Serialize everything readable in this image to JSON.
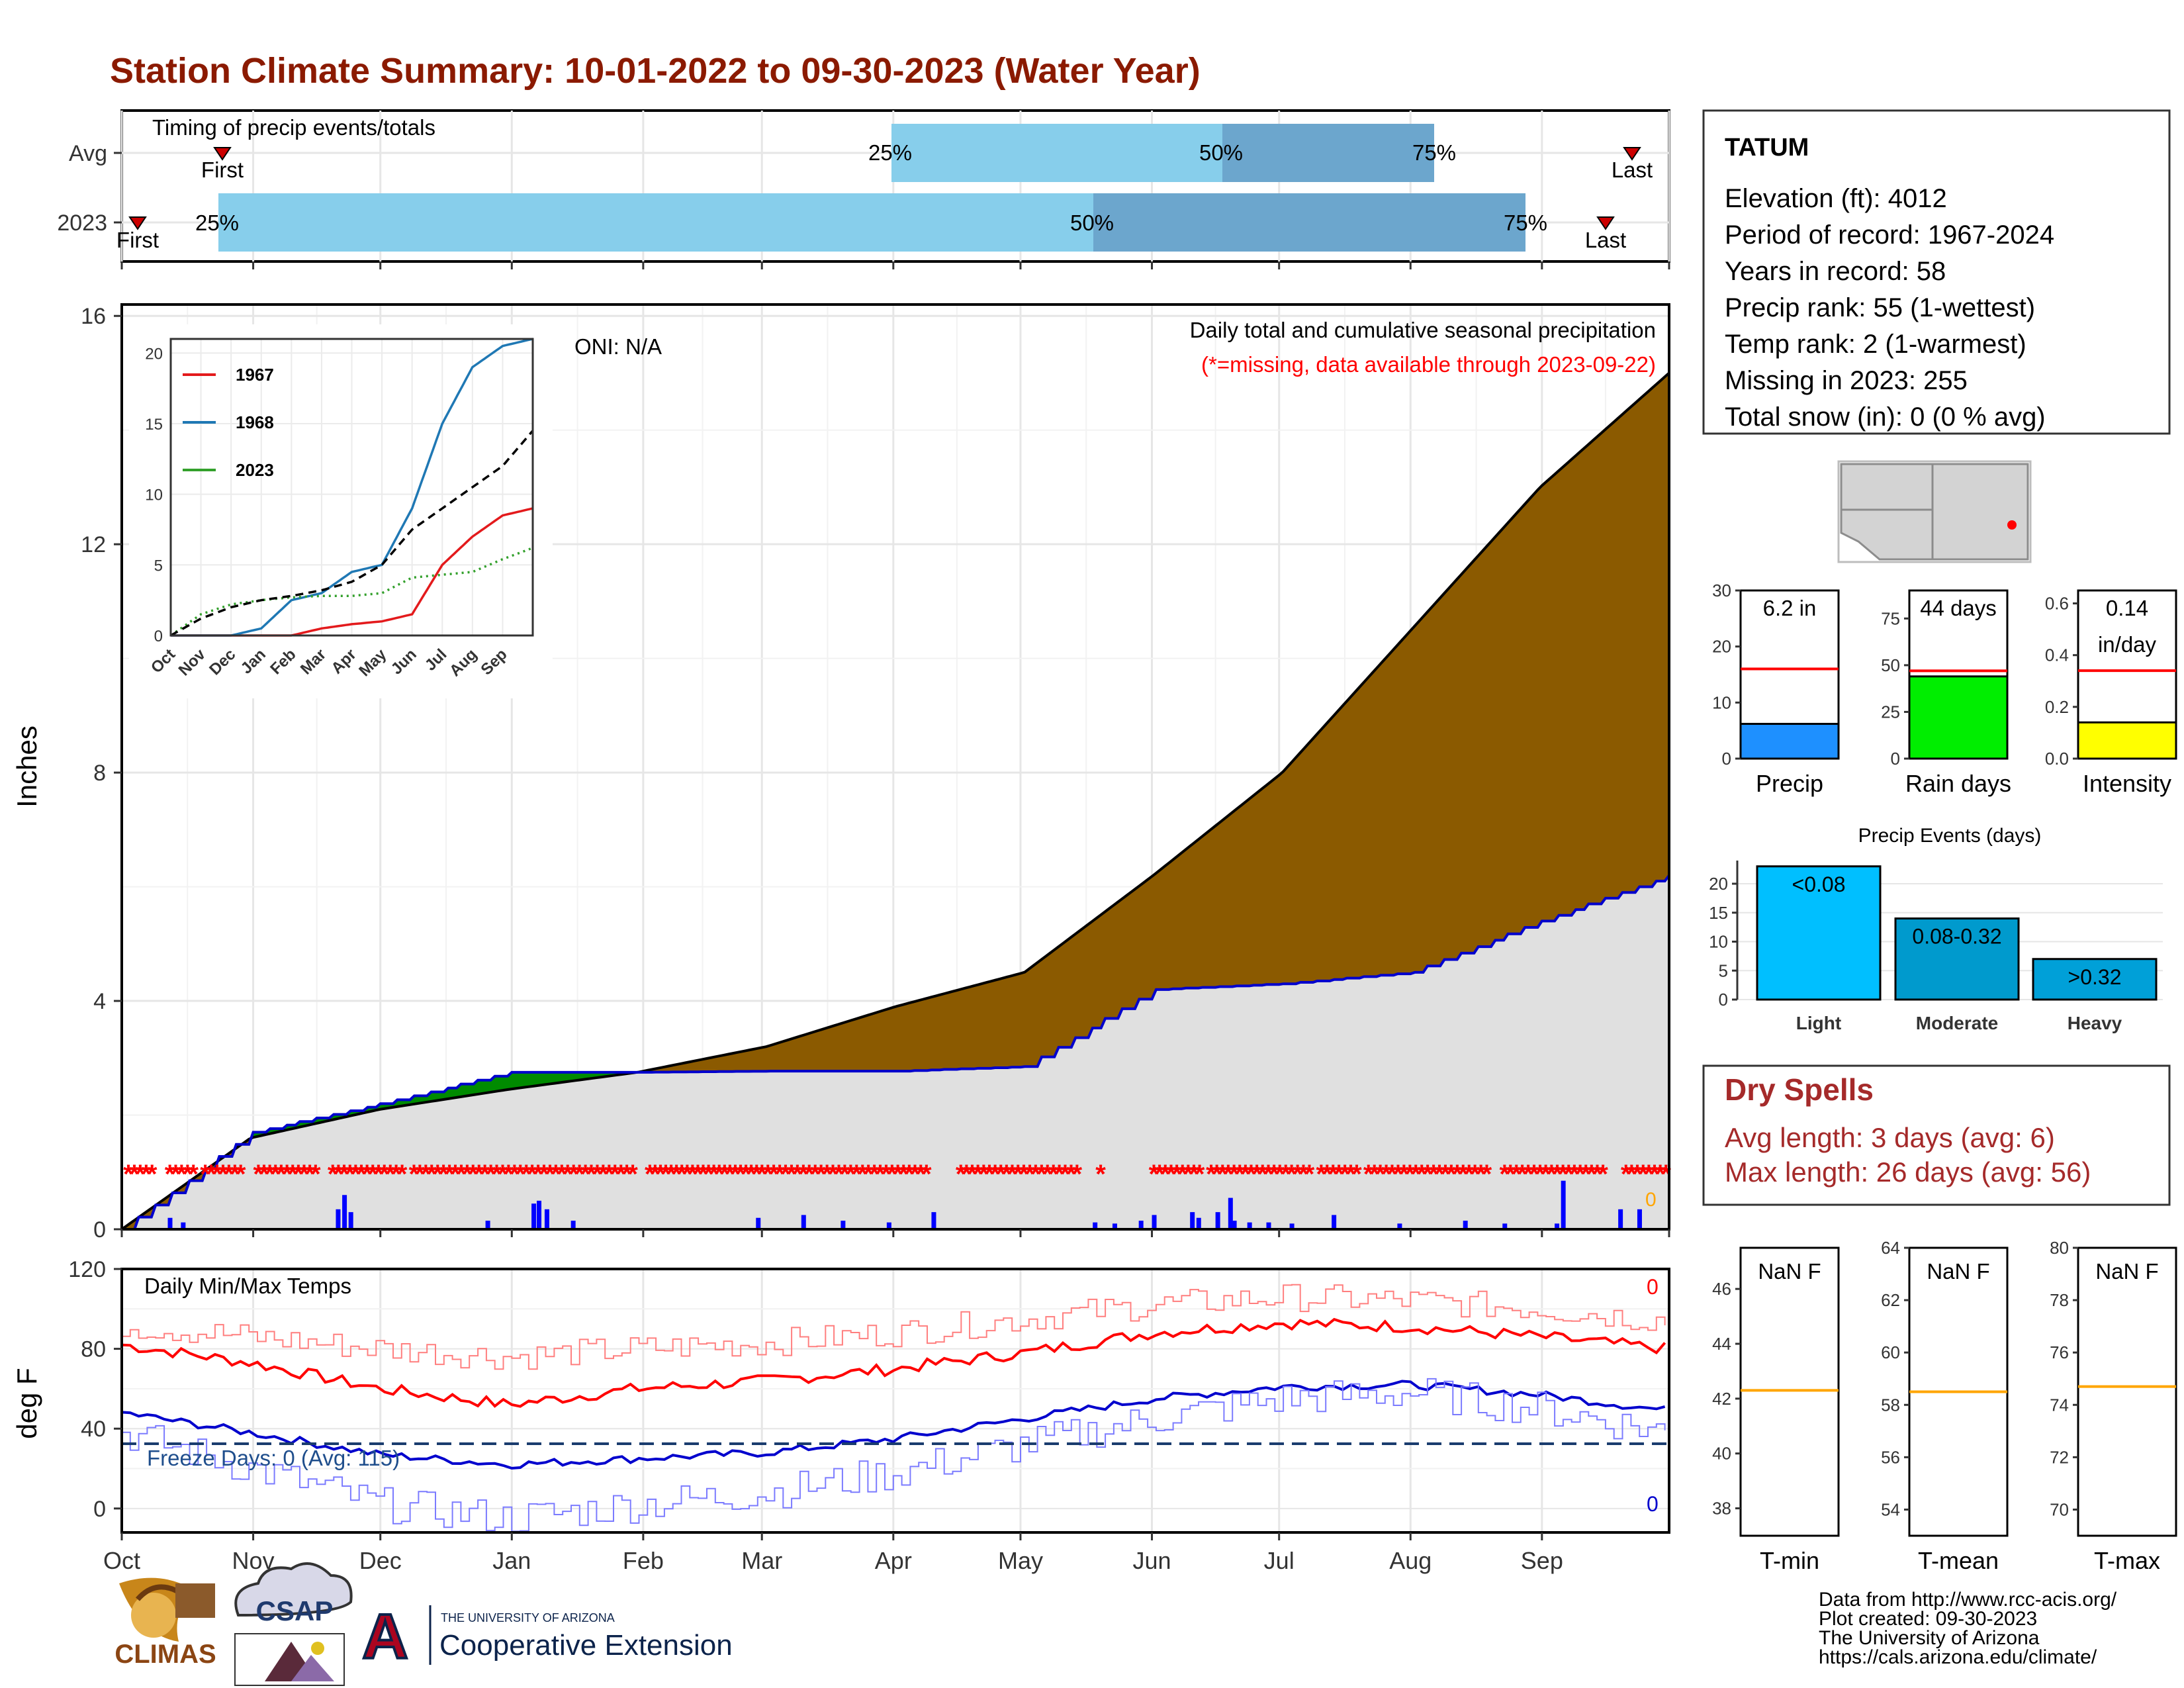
{
  "title": "Station Climate Summary: 10-01-2022 to 09-30-2023 (Water Year)",
  "timing": {
    "label": "Timing of precip events/totals",
    "rows": [
      {
        "name": "Avg",
        "first_marker": "First",
        "last_marker": "Last",
        "q25": "25%",
        "q50": "50%",
        "q75": "75%"
      },
      {
        "name": "2023",
        "first_marker": "First",
        "last_marker": "Last",
        "q25": "25%",
        "q50": "50%",
        "q75": "75%"
      }
    ]
  },
  "main": {
    "ylabel": "Inches",
    "oni": "ONI: N/A",
    "caption": "Daily total and cumulative seasonal precipitation",
    "missing_note": "(*=missing, data available through 2023-09-22)",
    "zero_label": "0",
    "y_ticks": [
      "0",
      "4",
      "8",
      "12",
      "16"
    ]
  },
  "inset": {
    "legend": [
      "1967",
      "1968",
      "2023"
    ],
    "y_ticks": [
      "0",
      "5",
      "10",
      "15",
      "20"
    ],
    "months": [
      "Oct",
      "Nov",
      "Dec",
      "Jan",
      "Feb",
      "Mar",
      "Apr",
      "May",
      "Jun",
      "Jul",
      "Aug",
      "Sep"
    ]
  },
  "temps": {
    "label": "Daily Min/Max Temps",
    "ylabel": "deg F",
    "freeze": "Freeze Days: 0 (Avg: 115)",
    "max_count": "0",
    "min_count": "0",
    "y_ticks": [
      "0",
      "40",
      "80",
      "120"
    ]
  },
  "months": [
    "Oct",
    "Nov",
    "Dec",
    "Jan",
    "Feb",
    "Mar",
    "Apr",
    "May",
    "Jun",
    "Jul",
    "Aug",
    "Sep"
  ],
  "station": {
    "name": "TATUM",
    "lines": [
      "Elevation (ft): 4012",
      "Period of record: 1967-2024",
      "Years in record: 58",
      "Precip rank: 55 (1-wettest)",
      "Temp rank: 2 (1-warmest)",
      "Missing in 2023: 255",
      "Total snow (in): 0 (0 % avg)"
    ]
  },
  "mini_bars": [
    {
      "label": "Precip",
      "value_text": "6.2 in",
      "value": 6.2,
      "avg": 16,
      "ymax": 30,
      "ticks": [
        "0",
        "10",
        "20",
        "30"
      ],
      "color": "#1e90ff"
    },
    {
      "label": "Rain days",
      "value_text": "44 days",
      "value": 44,
      "avg": 47,
      "ymax": 90,
      "ticks": [
        "0",
        "25",
        "50",
        "75"
      ],
      "color": "#00ee00"
    },
    {
      "label": "Intensity",
      "value_text": "0.14",
      "value_text2": "in/day",
      "value": 0.14,
      "avg": 0.34,
      "ymax": 0.65,
      "ticks": [
        "0.0",
        "0.2",
        "0.4",
        "0.6"
      ],
      "color": "#ffff00"
    }
  ],
  "events": {
    "title": "Precip Events (days)",
    "y_ticks": [
      "0",
      "5",
      "10",
      "15",
      "20"
    ],
    "bars": [
      {
        "label": "Light",
        "value_text": "<0.08",
        "value": 23,
        "color": "#00bfff"
      },
      {
        "label": "Moderate",
        "value_text": "0.08-0.32",
        "value": 14,
        "color": "#009acd"
      },
      {
        "label": "Heavy",
        "value_text": ">0.32",
        "value": 7,
        "color": "#00a0d8"
      }
    ]
  },
  "dry_spells": {
    "title": "Dry Spells",
    "avg": "Avg length: 3 days (avg: 6)",
    "max": "Max length: 26 days (avg: 56)"
  },
  "temp_boxes": [
    {
      "label": "T-min",
      "value_text": "NaN F",
      "ticks": [
        "38",
        "40",
        "42",
        "44",
        "46"
      ],
      "avg": 42.3,
      "ymin": 37,
      "ymax": 47.5
    },
    {
      "label": "T-mean",
      "value_text": "NaN F",
      "ticks": [
        "54",
        "56",
        "58",
        "60",
        "62",
        "64"
      ],
      "avg": 58.5,
      "ymin": 53,
      "ymax": 64
    },
    {
      "label": "T-max",
      "value_text": "NaN F",
      "ticks": [
        "70",
        "72",
        "74",
        "76",
        "78",
        "80"
      ],
      "avg": 74.7,
      "ymin": 69,
      "ymax": 80
    }
  ],
  "logos": {
    "climas": "CLIMAS",
    "csap": "CSAP",
    "ua_small": "THE UNIVERSITY OF ARIZONA",
    "coop": "Cooperative Extension"
  },
  "footer": [
    "Data from http://www.rcc-acis.org/",
    "Plot created: 09-30-2023",
    "The University of Arizona",
    "https://cals.arizona.edu/climate/"
  ],
  "chart_data": [
    {
      "type": "area",
      "ylabel": "Inches",
      "ylim": [
        0,
        16.2
      ],
      "x": [
        "Oct",
        "Nov",
        "Dec",
        "Jan",
        "Feb",
        "Mar",
        "Apr",
        "May",
        "Jun",
        "Jul",
        "Aug",
        "Sep",
        "Sep end"
      ],
      "series": [
        {
          "values": [
            0,
            1.6,
            2.1,
            2.45,
            2.75,
            3.2,
            3.9,
            4.5,
            6.2,
            8.0,
            10.5,
            13.0,
            15.0
          ]
        },
        {
          "values": [
            0,
            1.7,
            2.2,
            2.75,
            2.75,
            2.77,
            2.77,
            2.85,
            4.2,
            4.3,
            4.5,
            5.4,
            6.2
          ]
        }
      ]
    },
    {
      "type": "line",
      "ylabel": "deg F",
      "ylim": [
        -12,
        120
      ],
      "x": [
        "Oct",
        "Nov",
        "Dec",
        "Jan",
        "Feb",
        "Mar",
        "Apr",
        "May",
        "Jun",
        "Jul",
        "Aug",
        "Sep",
        "Sep end"
      ],
      "series": [
        {
          "values": [
            82,
            73,
            60,
            52,
            60,
            64,
            70,
            78,
            88,
            93,
            91,
            86,
            80
          ]
        },
        {
          "values": [
            48,
            38,
            27,
            22,
            25,
            28,
            35,
            45,
            55,
            61,
            62,
            57,
            49
          ]
        },
        {
          "values": [
            92,
            86,
            80,
            76,
            80,
            83,
            88,
            95,
            102,
            106,
            104,
            100,
            94
          ]
        },
        {
          "values": [
            38,
            20,
            2,
            -5,
            2,
            8,
            18,
            32,
            45,
            55,
            58,
            50,
            38
          ]
        }
      ]
    },
    {
      "type": "line",
      "ylim": [
        0,
        21
      ],
      "x": [
        "Oct",
        "Nov",
        "Dec",
        "Jan",
        "Feb",
        "Mar",
        "Apr",
        "May",
        "Jun",
        "Jul",
        "Aug",
        "Sep",
        "Sep end"
      ],
      "series": [
        {
          "name": "1967",
          "values": [
            0,
            0,
            0,
            0,
            0,
            0.5,
            0.8,
            1,
            1.5,
            5,
            7,
            8.5,
            9
          ]
        },
        {
          "name": "1968",
          "values": [
            0,
            0,
            0,
            0.5,
            2.5,
            3,
            4.5,
            5,
            9,
            15,
            19,
            20.5,
            21
          ]
        },
        {
          "name": "2023",
          "values": [
            0,
            1.5,
            2.2,
            2.5,
            2.7,
            2.8,
            2.8,
            3,
            4.1,
            4.3,
            4.5,
            5.4,
            6.2
          ]
        },
        {
          "values": [
            0,
            1.2,
            2.0,
            2.5,
            2.8,
            3.2,
            3.8,
            5,
            7.5,
            9,
            10.5,
            12,
            14.5
          ]
        }
      ]
    }
  ]
}
